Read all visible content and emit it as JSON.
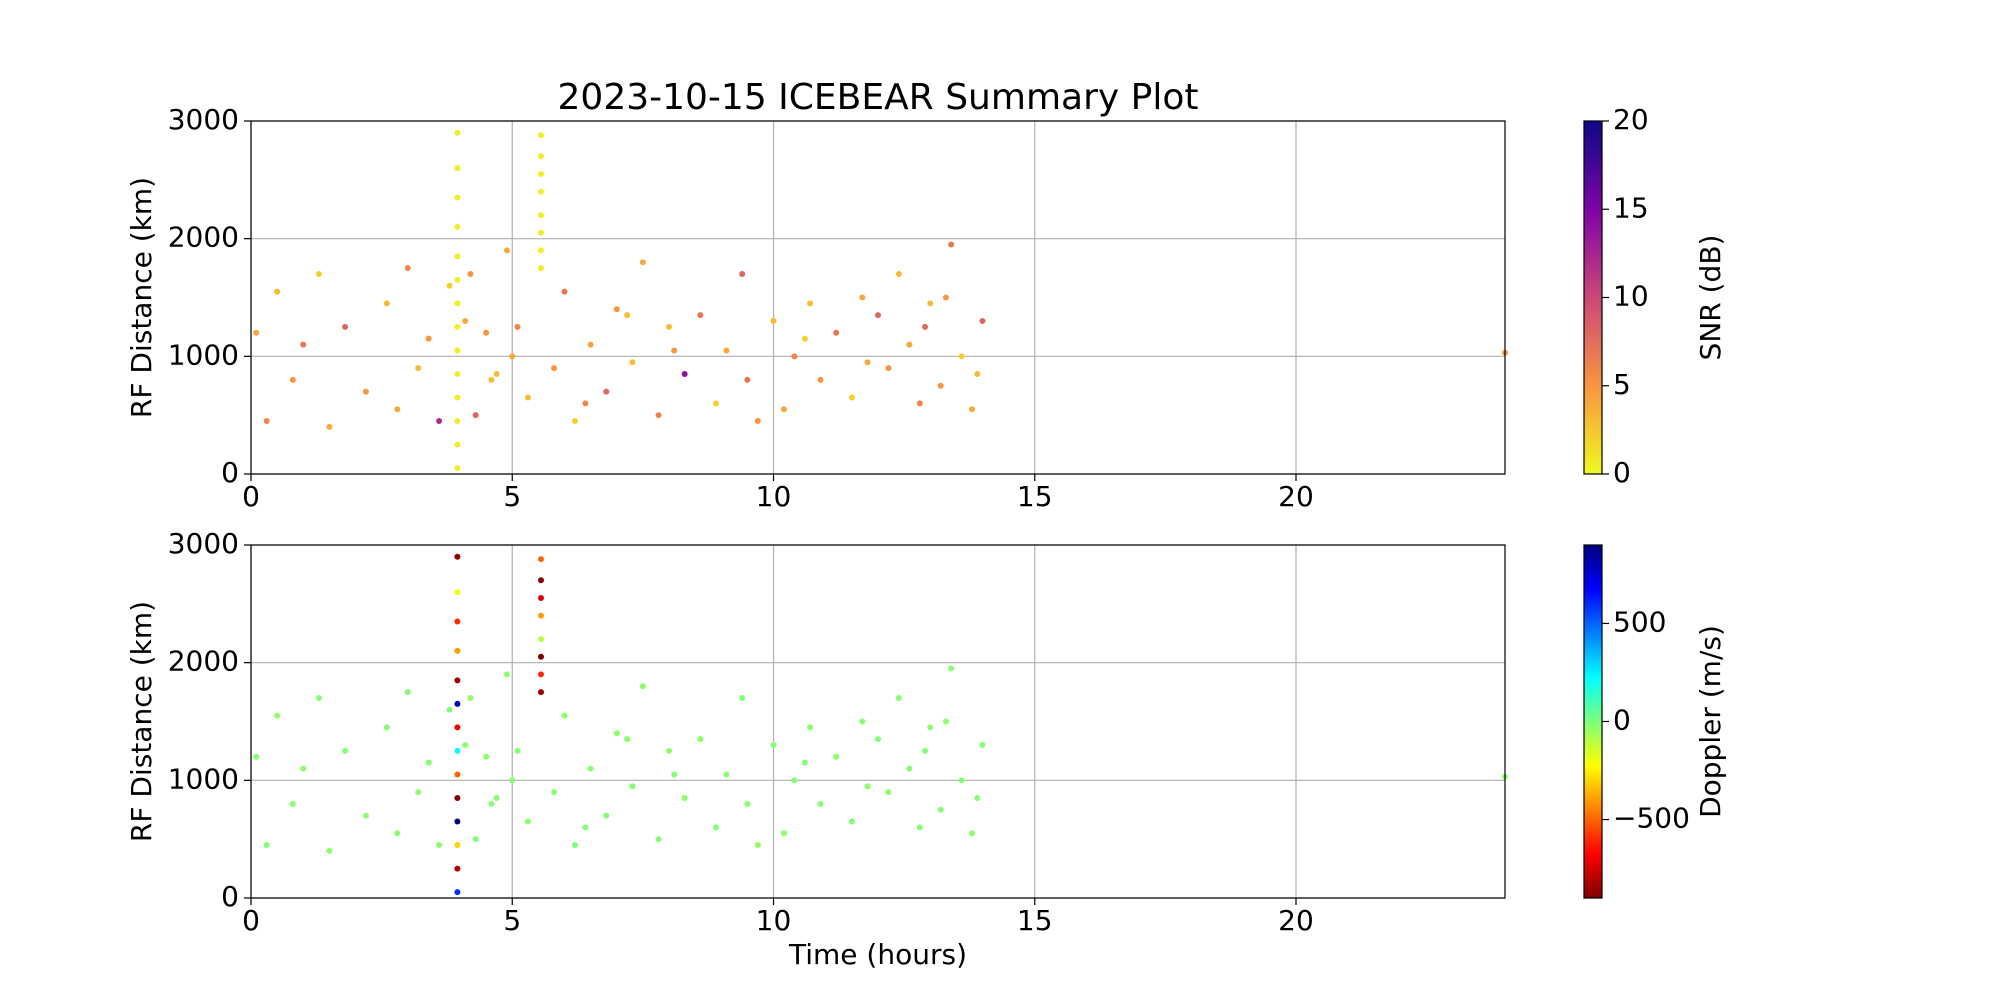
{
  "chart_data": [
    {
      "type": "scatter",
      "title": "2023-10-15 ICEBEAR Summary Plot",
      "ylabel": "RF Distance (km)",
      "x": [
        0.1,
        0.3,
        0.5,
        0.8,
        1.0,
        1.3,
        1.5,
        1.8,
        2.2,
        2.6,
        2.8,
        3.0,
        3.2,
        3.4,
        3.6,
        3.8,
        4.1,
        4.3,
        4.5,
        4.7,
        4.9,
        5.1,
        5.3,
        5.8,
        6.0,
        6.2,
        6.5,
        6.8,
        7.0,
        7.3,
        7.5,
        7.8,
        8.0,
        8.3,
        8.6,
        8.9,
        9.1,
        9.4,
        9.7,
        10.0,
        10.2,
        10.4,
        10.7,
        10.9,
        11.2,
        11.5,
        11.7,
        12.0,
        12.2,
        12.4,
        12.6,
        12.8,
        13.0,
        13.2,
        13.4,
        13.6,
        13.8,
        14.0,
        4.2,
        4.6,
        5.0,
        6.4,
        7.2,
        8.1,
        9.5,
        10.6,
        11.8,
        12.9,
        13.3,
        13.9,
        24.0,
        3.95,
        3.95,
        3.95,
        3.95,
        3.95,
        3.95,
        3.95,
        3.95,
        3.95,
        3.95,
        3.95,
        3.95,
        3.95,
        3.95,
        5.55,
        5.55,
        5.55,
        5.55,
        5.55,
        5.55,
        5.55,
        5.55
      ],
      "y": [
        1200,
        450,
        1550,
        800,
        1100,
        1700,
        400,
        1250,
        700,
        1450,
        550,
        1750,
        900,
        1150,
        450,
        1600,
        1300,
        500,
        1200,
        850,
        1900,
        1250,
        650,
        900,
        1550,
        450,
        1100,
        700,
        1400,
        950,
        1800,
        500,
        1250,
        850,
        1350,
        600,
        1050,
        1700,
        450,
        1300,
        550,
        1000,
        1450,
        800,
        1200,
        650,
        1500,
        1350,
        900,
        1700,
        1100,
        600,
        1450,
        750,
        1950,
        1000,
        550,
        1300,
        1700,
        800,
        1000,
        600,
        1350,
        1050,
        800,
        1150,
        950,
        1250,
        1500,
        850,
        1030,
        50,
        250,
        450,
        650,
        850,
        1050,
        1250,
        1450,
        1650,
        1850,
        2100,
        2350,
        2600,
        2900,
        1750,
        1900,
        2050,
        2200,
        2400,
        2550,
        2700,
        2880
      ],
      "color_values": [
        4,
        6,
        3,
        5,
        7,
        2,
        4,
        8,
        5,
        3,
        4,
        6,
        3,
        5,
        12,
        2,
        4,
        8,
        5,
        3,
        4,
        6,
        3,
        5,
        7,
        2,
        4,
        8,
        5,
        3,
        4,
        6,
        3,
        14,
        7,
        2,
        4,
        8,
        5,
        3,
        4,
        6,
        3,
        5,
        7,
        2,
        4,
        8,
        5,
        3,
        4,
        6,
        3,
        5,
        7,
        2,
        4,
        8,
        5,
        3,
        4,
        6,
        3,
        5,
        7,
        2,
        4,
        8,
        5,
        3,
        5,
        0.5,
        0.5,
        0.5,
        0.5,
        0.5,
        0.5,
        0.5,
        0.5,
        0.5,
        0.5,
        0.5,
        0.5,
        0.5,
        0.5,
        0.5,
        0.5,
        0.5,
        0.5,
        0.5,
        0.5,
        0.5,
        0.5
      ],
      "xlim": [
        0,
        24
      ],
      "xticks": [
        0,
        5,
        10,
        15,
        20
      ],
      "ylim": [
        0,
        3000
      ],
      "yticks": [
        0,
        1000,
        2000,
        3000
      ],
      "grid": true,
      "colorbar": {
        "label": "SNR (dB)",
        "lim": [
          0,
          20
        ],
        "ticks": [
          0,
          5,
          10,
          15,
          20
        ],
        "colormap": [
          "#f0f921",
          "#f89540",
          "#cc4778",
          "#7e03a8",
          "#0d0887"
        ]
      }
    },
    {
      "type": "scatter",
      "xlabel": "Time (hours)",
      "ylabel": "RF Distance (km)",
      "x": [
        0.1,
        0.3,
        0.5,
        0.8,
        1.0,
        1.3,
        1.5,
        1.8,
        2.2,
        2.6,
        2.8,
        3.0,
        3.2,
        3.4,
        3.6,
        3.8,
        4.1,
        4.3,
        4.5,
        4.7,
        4.9,
        5.1,
        5.3,
        5.8,
        6.0,
        6.2,
        6.5,
        6.8,
        7.0,
        7.3,
        7.5,
        7.8,
        8.0,
        8.3,
        8.6,
        8.9,
        9.1,
        9.4,
        9.7,
        10.0,
        10.2,
        10.4,
        10.7,
        10.9,
        11.2,
        11.5,
        11.7,
        12.0,
        12.2,
        12.4,
        12.6,
        12.8,
        13.0,
        13.2,
        13.4,
        13.6,
        13.8,
        14.0,
        4.2,
        4.6,
        5.0,
        6.4,
        7.2,
        8.1,
        9.5,
        10.6,
        11.8,
        12.9,
        13.3,
        13.9,
        24.0,
        3.95,
        3.95,
        3.95,
        3.95,
        3.95,
        3.95,
        3.95,
        3.95,
        3.95,
        3.95,
        3.95,
        3.95,
        3.95,
        3.95,
        5.55,
        5.55,
        5.55,
        5.55,
        5.55,
        5.55,
        5.55,
        5.55
      ],
      "y": [
        1200,
        450,
        1550,
        800,
        1100,
        1700,
        400,
        1250,
        700,
        1450,
        550,
        1750,
        900,
        1150,
        450,
        1600,
        1300,
        500,
        1200,
        850,
        1900,
        1250,
        650,
        900,
        1550,
        450,
        1100,
        700,
        1400,
        950,
        1800,
        500,
        1250,
        850,
        1350,
        600,
        1050,
        1700,
        450,
        1300,
        550,
        1000,
        1450,
        800,
        1200,
        650,
        1500,
        1350,
        900,
        1700,
        1100,
        600,
        1450,
        750,
        1950,
        1000,
        550,
        1300,
        1700,
        800,
        1000,
        600,
        1350,
        1050,
        800,
        1150,
        950,
        1250,
        1500,
        850,
        1030,
        50,
        250,
        450,
        650,
        850,
        1050,
        1250,
        1450,
        1650,
        1850,
        2100,
        2350,
        2600,
        2900,
        1750,
        1900,
        2050,
        2200,
        2400,
        2550,
        2700,
        2880
      ],
      "color_values": [
        -20,
        -10,
        -30,
        -15,
        -25,
        -5,
        -20,
        -10,
        -30,
        -15,
        -20,
        -10,
        -30,
        -15,
        -25,
        -5,
        -20,
        -10,
        -30,
        -15,
        -20,
        -10,
        -30,
        -15,
        -25,
        -5,
        -20,
        -10,
        -30,
        -15,
        -20,
        -10,
        -30,
        -15,
        -25,
        -5,
        -20,
        -10,
        -30,
        -15,
        -20,
        -10,
        -30,
        -15,
        -25,
        -5,
        -20,
        -10,
        -30,
        -15,
        -20,
        -10,
        -30,
        -15,
        -25,
        -5,
        -20,
        -10,
        -30,
        -15,
        -20,
        -10,
        -30,
        -15,
        -25,
        -5,
        -20,
        -10,
        -30,
        -15,
        -20,
        600,
        -800,
        -300,
        900,
        -900,
        -500,
        200,
        -700,
        800,
        -850,
        -400,
        -600,
        -200,
        -880,
        -850,
        -600,
        -900,
        -100,
        -400,
        -750,
        -880,
        -500
      ],
      "xlim": [
        0,
        24
      ],
      "xticks": [
        0,
        5,
        10,
        15,
        20
      ],
      "ylim": [
        0,
        3000
      ],
      "yticks": [
        0,
        1000,
        2000,
        3000
      ],
      "grid": true,
      "colorbar": {
        "label": "Doppler (m/s)",
        "lim": [
          -900,
          900
        ],
        "ticks": [
          {
            "value": -500,
            "label": "−500"
          },
          0,
          500
        ],
        "colormap": [
          "#800000",
          "#ff0000",
          "#ff8000",
          "#ffff00",
          "#7dff7a",
          "#00ffff",
          "#0080ff",
          "#0000ff",
          "#000080"
        ]
      }
    }
  ]
}
